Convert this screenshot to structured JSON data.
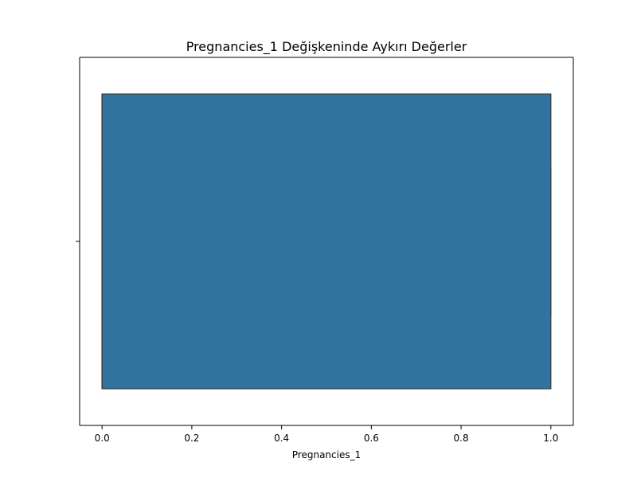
{
  "chart_data": {
    "type": "boxplot",
    "orientation": "horizontal",
    "title": "Pregnancies_1 Değişkeninde Aykırı Değerler",
    "xlabel": "Pregnancies_1",
    "ylabel": "",
    "xlim": [
      -0.05,
      1.05
    ],
    "xticks": [
      0.0,
      0.2,
      0.4,
      0.6,
      0.8,
      1.0
    ],
    "xtick_labels": [
      "0.0",
      "0.2",
      "0.4",
      "0.6",
      "0.8",
      "1.0"
    ],
    "box": {
      "min": 0.0,
      "q1": 0.0,
      "median": 0.0,
      "q3": 1.0,
      "max": 1.0,
      "outliers": []
    },
    "colors": {
      "box_fill": "#3274a1",
      "box_edge": "#3b3b3b",
      "axis": "#000000",
      "background": "#ffffff"
    }
  }
}
